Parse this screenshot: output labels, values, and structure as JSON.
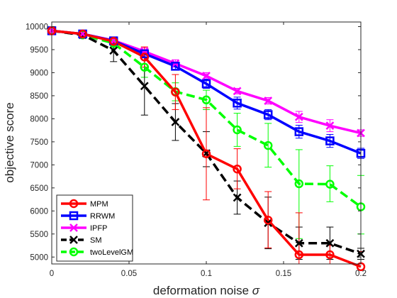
{
  "chart_data": {
    "type": "line",
    "title": "",
    "xlabel": "deformation noise",
    "xlabel_symbol": "σ",
    "ylabel": "objective score",
    "xlim": [
      0,
      0.2
    ],
    "ylim": [
      4850,
      10100
    ],
    "x_ticks": [
      0,
      0.05,
      0.1,
      0.15,
      0.2
    ],
    "x_tick_labels": [
      "0",
      "0.05",
      "0.1",
      "0.15",
      "0.2"
    ],
    "y_ticks": [
      5000,
      5500,
      6000,
      6500,
      7000,
      7500,
      8000,
      8500,
      9000,
      9500,
      10000
    ],
    "y_tick_labels": [
      "5000",
      "5500",
      "6000",
      "6500",
      "7000",
      "7500",
      "8000",
      "8500",
      "9000",
      "9500",
      "10000"
    ],
    "grid": false,
    "legend_position": "bottom-left",
    "x": [
      0,
      0.02,
      0.04,
      0.06,
      0.08,
      0.1,
      0.12,
      0.14,
      0.16,
      0.18,
      0.2
    ],
    "series": [
      {
        "name": "twoLevelGM",
        "color": "#00ff00",
        "line_style": "dashed",
        "marker": "circle",
        "values": [
          9910,
          9820,
          9640,
          9120,
          8590,
          8410,
          7760,
          7420,
          6590,
          6580,
          6090
        ],
        "err_low": [
          9890,
          9780,
          9530,
          8900,
          8390,
          8200,
          7400,
          6950,
          5400,
          6200,
          5500
        ],
        "err_high": [
          9930,
          9860,
          9750,
          9340,
          8780,
          8620,
          8120,
          7900,
          7330,
          6980,
          6770
        ]
      },
      {
        "name": "SM",
        "color": "#000000",
        "line_style": "dashed",
        "marker": "x",
        "values": [
          9910,
          9820,
          9480,
          8710,
          7930,
          7250,
          6290,
          5740,
          5300,
          5300,
          5070
        ],
        "err_low": [
          9890,
          9760,
          9240,
          8080,
          7530,
          6960,
          5930,
          5180,
          4950,
          4950,
          4950
        ],
        "err_high": [
          9930,
          9880,
          9720,
          9340,
          8330,
          7720,
          6650,
          6300,
          5650,
          5650,
          5190
        ]
      },
      {
        "name": "IPFP",
        "color": "#ff00ff",
        "line_style": "solid",
        "marker": "x",
        "values": [
          9910,
          9840,
          9700,
          9460,
          9200,
          8930,
          8600,
          8390,
          8040,
          7850,
          7690
        ],
        "err_low": [
          9890,
          9800,
          9640,
          9380,
          9120,
          8860,
          8540,
          8320,
          7920,
          7720,
          7620
        ],
        "err_high": [
          9930,
          9880,
          9760,
          9540,
          9280,
          9000,
          8660,
          8460,
          8160,
          7980,
          7760
        ]
      },
      {
        "name": "RRWM",
        "color": "#0000ff",
        "line_style": "solid",
        "marker": "square",
        "values": [
          9910,
          9840,
          9690,
          9410,
          9140,
          8760,
          8340,
          8090,
          7720,
          7520,
          7250
        ],
        "err_low": [
          9890,
          9800,
          9630,
          9340,
          9060,
          8660,
          8210,
          7980,
          7580,
          7380,
          7140
        ],
        "err_high": [
          9930,
          9880,
          9750,
          9480,
          9220,
          8860,
          8470,
          8200,
          7860,
          7660,
          7360
        ]
      },
      {
        "name": "MPM",
        "color": "#ff0000",
        "line_style": "solid",
        "marker": "circle",
        "values": [
          9910,
          9840,
          9680,
          9340,
          8580,
          7240,
          6910,
          5800,
          5050,
          5050,
          4790
        ],
        "err_low": [
          9890,
          9800,
          9600,
          9120,
          8200,
          6240,
          6480,
          5200,
          4850,
          4850,
          4850
        ],
        "err_high": [
          9930,
          9880,
          9760,
          9560,
          8960,
          8240,
          7350,
          6420,
          5960,
          5250,
          5120
        ]
      }
    ],
    "legend_order": [
      "MPM",
      "RRWM",
      "IPFP",
      "SM",
      "twoLevelGM"
    ]
  }
}
